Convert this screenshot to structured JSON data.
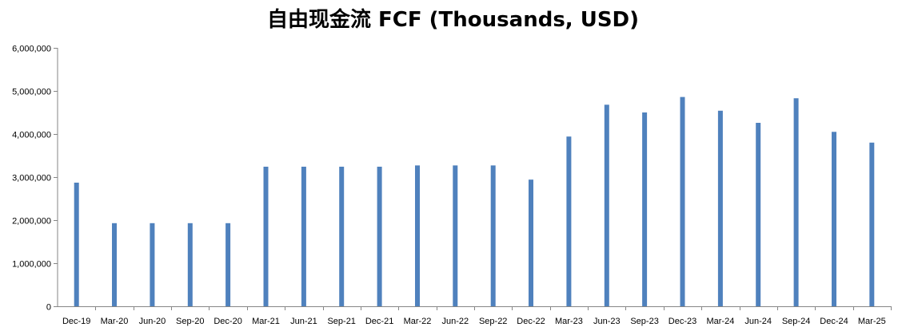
{
  "chart_data": {
    "type": "bar",
    "title": "自由现金流 FCF (Thousands, USD)",
    "xlabel": "",
    "ylabel": "",
    "categories": [
      "Dec-19",
      "Mar-20",
      "Jun-20",
      "Sep-20",
      "Dec-20",
      "Mar-21",
      "Jun-21",
      "Sep-21",
      "Dec-21",
      "Mar-22",
      "Jun-22",
      "Sep-22",
      "Dec-22",
      "Mar-23",
      "Jun-23",
      "Sep-23",
      "Dec-23",
      "Mar-24",
      "Jun-24",
      "Sep-24",
      "Dec-24",
      "Mar-25"
    ],
    "series": [
      {
        "values": [
          2870000,
          1930000,
          1930000,
          1930000,
          1930000,
          3240000,
          3240000,
          3240000,
          3240000,
          3270000,
          3270000,
          3270000,
          2940000,
          3940000,
          4680000,
          4500000,
          4860000,
          4540000,
          4260000,
          4830000,
          4050000,
          3800000
        ],
        "color": "#4F81BD"
      }
    ],
    "ylim": [
      0,
      6000000
    ],
    "yticks": [
      0,
      1000000,
      2000000,
      3000000,
      4000000,
      5000000,
      6000000
    ],
    "ytick_labels": [
      "0",
      "1,000,000",
      "2,000,000",
      "3,000,000",
      "4,000,000",
      "5,000,000",
      "6,000,000"
    ],
    "grid": false,
    "legend": "none"
  }
}
